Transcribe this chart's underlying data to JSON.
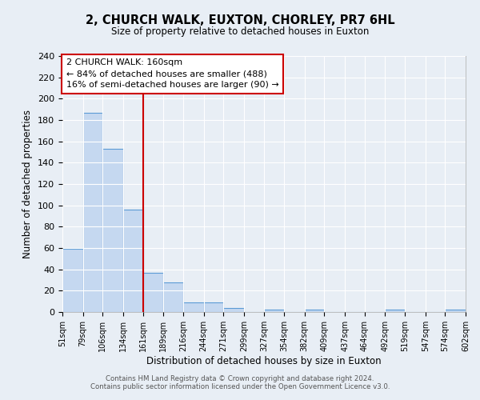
{
  "title": "2, CHURCH WALK, EUXTON, CHORLEY, PR7 6HL",
  "subtitle": "Size of property relative to detached houses in Euxton",
  "xlabel": "Distribution of detached houses by size in Euxton",
  "ylabel": "Number of detached properties",
  "footer_lines": [
    "Contains HM Land Registry data © Crown copyright and database right 2024.",
    "Contains public sector information licensed under the Open Government Licence v3.0."
  ],
  "bin_edges": [
    51,
    79,
    106,
    134,
    161,
    189,
    216,
    244,
    271,
    299,
    327,
    354,
    382,
    409,
    437,
    464,
    492,
    519,
    547,
    574,
    602
  ],
  "bar_heights": [
    59,
    187,
    153,
    96,
    37,
    28,
    9,
    9,
    4,
    0,
    2,
    0,
    2,
    0,
    0,
    0,
    2,
    0,
    0,
    2
  ],
  "bar_color": "#c5d8f0",
  "bar_edge_color": "#5b9bd5",
  "red_line_x": 161,
  "ylim": [
    0,
    240
  ],
  "yticks": [
    0,
    20,
    40,
    60,
    80,
    100,
    120,
    140,
    160,
    180,
    200,
    220,
    240
  ],
  "annotation_title": "2 CHURCH WALK: 160sqm",
  "annotation_line1": "← 84% of detached houses are smaller (488)",
  "annotation_line2": "16% of semi-detached houses are larger (90) →",
  "bg_color": "#e8eef5",
  "plot_bg_color": "#e8eef5",
  "grid_color": "#ffffff",
  "annotation_box_color": "#ffffff",
  "annotation_box_edge": "#cc0000"
}
